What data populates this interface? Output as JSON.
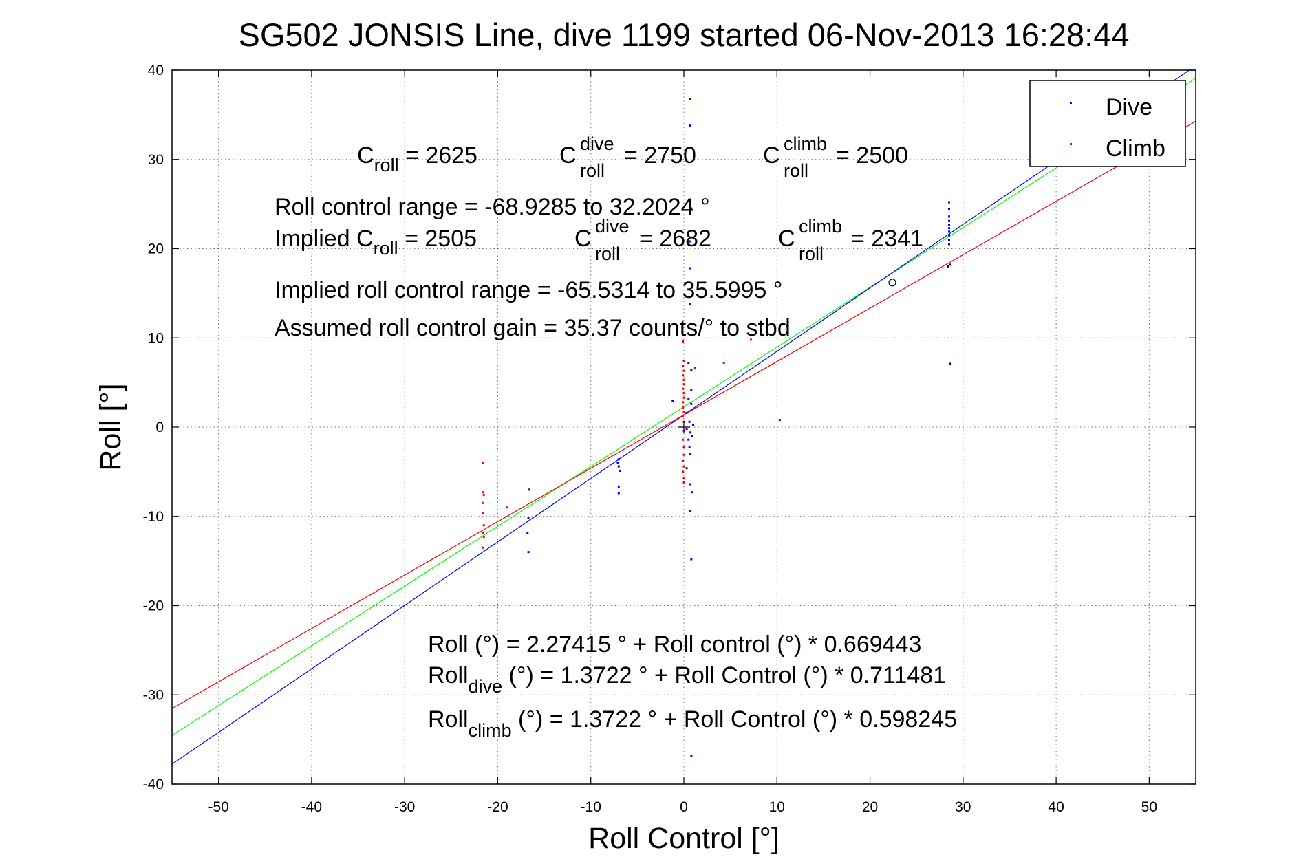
{
  "chart_data": {
    "type": "scatter",
    "title": "SG502 JONSIS Line, dive 1199 started 06-Nov-2013 16:28:44",
    "xlabel": "Roll Control [°]",
    "ylabel": "Roll [°]",
    "xlim": [
      -55,
      55
    ],
    "ylim": [
      -40,
      40
    ],
    "xticks": [
      -50,
      -40,
      -30,
      -20,
      -10,
      0,
      10,
      20,
      30,
      40,
      50
    ],
    "yticks": [
      -40,
      -30,
      -20,
      -10,
      0,
      10,
      20,
      30,
      40
    ],
    "grid": true,
    "legend_position": "top-right",
    "legend": [
      {
        "label": "Dive",
        "color": "#0000ff"
      },
      {
        "label": "Climb",
        "color": "#ff0000"
      }
    ],
    "series": [
      {
        "name": "Dive",
        "color": "#0000ff",
        "points": [
          [
            0.7,
            36.8
          ],
          [
            0.7,
            33.8
          ],
          [
            0.8,
            24.5
          ],
          [
            0.7,
            20.8
          ],
          [
            0.7,
            17.8
          ],
          [
            0.7,
            13.8
          ],
          [
            0.5,
            7.2
          ],
          [
            0.8,
            6.4
          ],
          [
            0.8,
            4.2
          ],
          [
            0.5,
            3.2
          ],
          [
            0.8,
            2.6
          ],
          [
            -1.2,
            2.9
          ],
          [
            0.3,
            1.6
          ],
          [
            0.6,
            0.6
          ],
          [
            1.0,
            0.2
          ],
          [
            0.3,
            -0.2
          ],
          [
            0.7,
            -0.6
          ],
          [
            0.9,
            -1.0
          ],
          [
            0.5,
            -1.4
          ],
          [
            0.6,
            -2.2
          ],
          [
            0.7,
            -3.0
          ],
          [
            0.3,
            -4.6
          ],
          [
            0.7,
            -6.4
          ],
          [
            0.9,
            -7.3
          ],
          [
            0.7,
            -9.4
          ],
          [
            0.8,
            -14.8
          ],
          [
            0.8,
            -36.8
          ],
          [
            10.3,
            0.8
          ],
          [
            -7.0,
            -3.6
          ],
          [
            -7.1,
            -4.0
          ],
          [
            -7.0,
            -4.4
          ],
          [
            -6.9,
            -4.9
          ],
          [
            -7.0,
            -6.7
          ],
          [
            -7.0,
            -7.4
          ],
          [
            -16.6,
            -7.0
          ],
          [
            -16.7,
            -10.2
          ],
          [
            -16.8,
            -11.9
          ],
          [
            -16.7,
            -14.0
          ],
          [
            28.5,
            25.2
          ],
          [
            28.5,
            24.4
          ],
          [
            28.5,
            23.6
          ],
          [
            28.5,
            23.1
          ],
          [
            28.5,
            22.7
          ],
          [
            28.5,
            22.3
          ],
          [
            28.5,
            21.9
          ],
          [
            28.5,
            21.5
          ],
          [
            28.5,
            21.0
          ],
          [
            28.5,
            20.5
          ],
          [
            28.6,
            18.2
          ],
          [
            28.4,
            18.0
          ],
          [
            28.6,
            7.1
          ]
        ]
      },
      {
        "name": "Climb",
        "color": "#ff0000",
        "points": [
          [
            -0.1,
            9.6
          ],
          [
            0.0,
            7.4
          ],
          [
            -0.1,
            6.9
          ],
          [
            0.0,
            6.3
          ],
          [
            -0.1,
            5.8
          ],
          [
            0.0,
            5.3
          ],
          [
            0.0,
            4.8
          ],
          [
            -0.1,
            4.3
          ],
          [
            0.0,
            3.8
          ],
          [
            0.0,
            3.3
          ],
          [
            -0.1,
            2.8
          ],
          [
            -0.1,
            2.2
          ],
          [
            0.0,
            1.7
          ],
          [
            -0.1,
            1.2
          ],
          [
            0.0,
            0.6
          ],
          [
            0.0,
            -0.4
          ],
          [
            -0.1,
            -1.4
          ],
          [
            0.0,
            -2.2
          ],
          [
            0.0,
            -3.1
          ],
          [
            -0.1,
            -3.8
          ],
          [
            0.0,
            -4.4
          ],
          [
            -0.1,
            -5.0
          ],
          [
            0.0,
            -5.7
          ],
          [
            0.0,
            -6.2
          ],
          [
            1.2,
            6.6
          ],
          [
            4.3,
            7.2
          ],
          [
            7.2,
            9.8
          ],
          [
            -21.6,
            -4.0
          ],
          [
            -21.6,
            -7.3
          ],
          [
            -21.5,
            -7.6
          ],
          [
            -21.6,
            -8.5
          ],
          [
            -21.6,
            -9.6
          ],
          [
            -21.5,
            -11.0
          ],
          [
            -21.6,
            -11.9
          ],
          [
            -21.5,
            -12.3
          ],
          [
            -21.6,
            -13.5
          ],
          [
            -19.0,
            -9.0
          ]
        ]
      }
    ],
    "fit_lines": [
      {
        "color": "#00ff00",
        "intercept": 2.27415,
        "slope": 0.669443
      },
      {
        "color": "#0000ff",
        "intercept": 1.3722,
        "slope": 0.711481
      },
      {
        "color": "#ff0000",
        "intercept": 1.3722,
        "slope": 0.598245
      }
    ],
    "center_marker": [
      0,
      0
    ],
    "open_circle_marker": [
      22.4,
      16.2
    ],
    "annotations": {
      "c_roll": {
        "base": "C",
        "sub": "roll",
        "value": " = 2625"
      },
      "c_roll_dive": {
        "base": "C",
        "sup": "dive",
        "sub": "roll",
        "value": " = 2750"
      },
      "c_roll_climb": {
        "base": "C",
        "sup": "climb",
        "sub": "roll",
        "value": " = 2500"
      },
      "range": "Roll control range = -68.9285 to 32.2024 °",
      "implied_prefix": "Implied C",
      "implied_sub": "roll",
      "implied_value": " = 2505",
      "implied_dive": {
        "base": "C",
        "sup": "dive",
        "sub": "roll",
        "value": " = 2682"
      },
      "implied_climb": {
        "base": "C",
        "sup": "climb",
        "sub": "roll",
        "value": " = 2341"
      },
      "implied_range": "Implied roll control range = -65.5314 to 35.5995 °",
      "gain": "Assumed roll control gain = 35.37 counts/° to stbd",
      "eq_roll": "Roll (°) = 2.27415 ° + Roll control (°) * 0.669443",
      "eq_dive_base": "Roll",
      "eq_dive_sub": "dive",
      "eq_dive_rest": " (°) = 1.3722 ° + Roll Control (°) * 0.711481",
      "eq_climb_base": "Roll",
      "eq_climb_sub": "climb",
      "eq_climb_rest": " (°) = 1.3722 ° + Roll Control (°) * 0.598245"
    }
  }
}
